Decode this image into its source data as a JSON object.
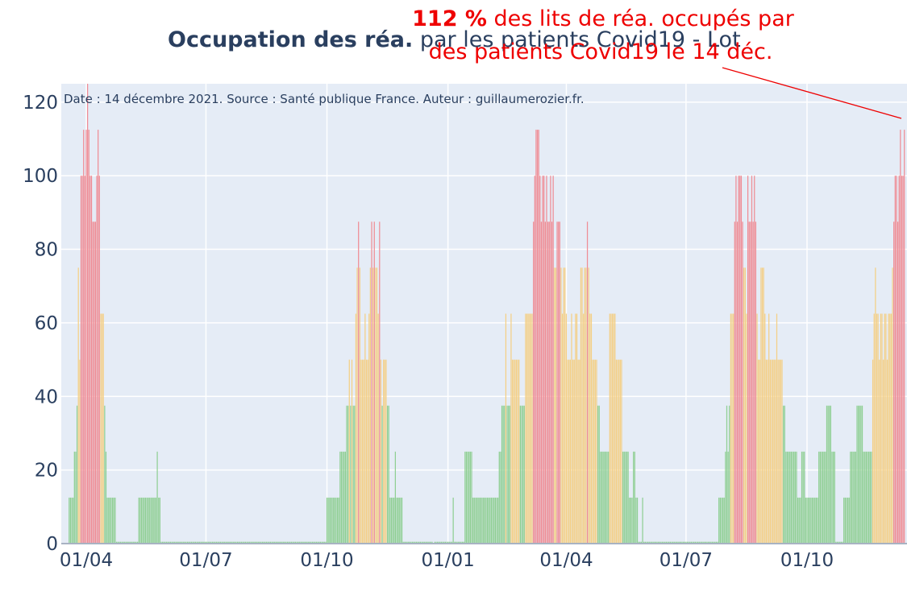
{
  "chart_data": {
    "type": "bar",
    "title_bold": "Occupation des réa.",
    "title_rest": " par les patients Covid19 - Lot",
    "note": "Date : 14 décembre 2021. Source : Santé publique France. Auteur : guillaumerozier.fr.",
    "annotation": {
      "value_text": "112 %",
      "line1_rest": " des lits de réa. occupés par",
      "line2": "des patients Covid19 le 14 déc."
    },
    "xlabel": "",
    "ylabel": "",
    "ylim": [
      0,
      125
    ],
    "grid": true,
    "x_range": [
      "2020-03-13",
      "2021-12-16"
    ],
    "y_ticks": [
      0,
      20,
      40,
      60,
      80,
      100,
      120
    ],
    "x_ticks": [
      {
        "date": "2020-04-01",
        "label": "01/04"
      },
      {
        "date": "2020-07-01",
        "label": "01/07"
      },
      {
        "date": "2020-10-01",
        "label": "01/10"
      },
      {
        "date": "2021-01-01",
        "label": "01/01"
      },
      {
        "date": "2021-04-01",
        "label": "01/04"
      },
      {
        "date": "2021-07-01",
        "label": "01/07"
      },
      {
        "date": "2021-10-01",
        "label": "01/10"
      }
    ],
    "thresholds": {
      "orange": 40,
      "red": 80
    },
    "colors": {
      "green": "#8fcf93",
      "orange": "#f4cf85",
      "red": "#ef8c95",
      "background": "#e5ecf6",
      "grid": "#ffffff",
      "text": "#2a3f5f",
      "annotation": "#ee0000"
    },
    "segments": [
      {
        "start": "2020-03-19",
        "end": "2020-03-22",
        "values": [
          12.5
        ]
      },
      {
        "start": "2020-03-23",
        "end": "2020-03-24",
        "values": [
          25
        ]
      },
      {
        "start": "2020-03-25",
        "end": "2020-03-25",
        "values": [
          37.5
        ]
      },
      {
        "start": "2020-03-26",
        "end": "2020-03-27",
        "values": [
          75,
          50
        ]
      },
      {
        "start": "2020-03-28",
        "end": "2020-04-11",
        "values": [
          100,
          100,
          112.5,
          100,
          112.5,
          125,
          112.5,
          100,
          100,
          87.5,
          87.5,
          87.5,
          100,
          112.5,
          100
        ]
      },
      {
        "start": "2020-04-12",
        "end": "2020-04-14",
        "values": [
          62.5
        ]
      },
      {
        "start": "2020-04-15",
        "end": "2020-04-15",
        "values": [
          37.5
        ]
      },
      {
        "start": "2020-04-16",
        "end": "2020-04-16",
        "values": [
          25
        ]
      },
      {
        "start": "2020-04-17",
        "end": "2020-04-23",
        "values": [
          12.5
        ]
      },
      {
        "start": "2020-04-24",
        "end": "2020-05-10",
        "values": [
          0.5
        ]
      },
      {
        "start": "2020-05-11",
        "end": "2020-05-24",
        "values": [
          12.5
        ]
      },
      {
        "start": "2020-05-25",
        "end": "2020-05-25",
        "values": [
          25
        ]
      },
      {
        "start": "2020-05-26",
        "end": "2020-05-27",
        "values": [
          12.5
        ]
      },
      {
        "start": "2020-05-28",
        "end": "2020-09-30",
        "values": [
          0.5
        ]
      },
      {
        "start": "2020-10-01",
        "end": "2020-10-10",
        "values": [
          12.5
        ]
      },
      {
        "start": "2020-10-11",
        "end": "2020-10-15",
        "values": [
          25
        ]
      },
      {
        "start": "2020-10-16",
        "end": "2020-10-22",
        "values": [
          37.5,
          37.5,
          50,
          37.5,
          50,
          37.5,
          37.5
        ]
      },
      {
        "start": "2020-10-23",
        "end": "2020-11-02",
        "values": [
          62.5,
          75,
          87.5,
          75,
          50,
          50,
          50,
          62.5,
          50,
          50,
          62.5
        ]
      },
      {
        "start": "2020-11-03",
        "end": "2020-11-10",
        "values": [
          75,
          87.5,
          75,
          87.5,
          75,
          75,
          62.5,
          87.5
        ]
      },
      {
        "start": "2020-11-11",
        "end": "2020-11-15",
        "values": [
          50,
          37.5,
          50,
          50,
          50
        ]
      },
      {
        "start": "2020-11-16",
        "end": "2020-11-17",
        "values": [
          37.5
        ]
      },
      {
        "start": "2020-11-18",
        "end": "2020-11-24",
        "values": [
          12.5,
          12.5,
          12.5,
          12.5,
          25,
          12.5,
          12.5
        ]
      },
      {
        "start": "2020-11-25",
        "end": "2020-11-27",
        "values": [
          12.5
        ]
      },
      {
        "start": "2020-11-28",
        "end": "2020-12-20",
        "values": [
          0.5
        ]
      },
      {
        "start": "2020-12-21",
        "end": "2020-12-21",
        "values": [
          0
        ]
      },
      {
        "start": "2020-12-22",
        "end": "2021-01-04",
        "values": [
          0.5
        ]
      },
      {
        "start": "2021-01-05",
        "end": "2021-01-05",
        "values": [
          12.5
        ]
      },
      {
        "start": "2021-01-06",
        "end": "2021-01-13",
        "values": [
          0.5
        ]
      },
      {
        "start": "2021-01-14",
        "end": "2021-01-19",
        "values": [
          25
        ]
      },
      {
        "start": "2021-01-20",
        "end": "2021-02-08",
        "values": [
          12.5
        ]
      },
      {
        "start": "2021-02-09",
        "end": "2021-02-10",
        "values": [
          25
        ]
      },
      {
        "start": "2021-02-11",
        "end": "2021-02-13",
        "values": [
          37.5
        ]
      },
      {
        "start": "2021-02-14",
        "end": "2021-02-14",
        "values": [
          62.5
        ]
      },
      {
        "start": "2021-02-15",
        "end": "2021-02-17",
        "values": [
          37.5
        ]
      },
      {
        "start": "2021-02-18",
        "end": "2021-02-28",
        "values": [
          62.5,
          50,
          50,
          50,
          50,
          50,
          50,
          37.5,
          37.5,
          37.5,
          37.5
        ]
      },
      {
        "start": "2021-03-01",
        "end": "2021-03-06",
        "values": [
          62.5
        ]
      },
      {
        "start": "2021-03-07",
        "end": "2021-03-19",
        "values": [
          87.5,
          100,
          112.5,
          112.5,
          112.5,
          100,
          87.5,
          100,
          100,
          87.5,
          100,
          87.5,
          87.5
        ]
      },
      {
        "start": "2021-03-20",
        "end": "2021-03-31",
        "values": [
          100,
          87.5,
          100,
          75,
          75,
          87.5,
          87.5,
          87.5,
          75,
          62.5,
          75,
          75
        ]
      },
      {
        "start": "2021-04-01",
        "end": "2021-04-12",
        "values": [
          62.5,
          50,
          50,
          50,
          62.5,
          50,
          50,
          62.5,
          62.5,
          50,
          50,
          75
        ]
      },
      {
        "start": "2021-04-13",
        "end": "2021-04-24",
        "values": [
          75,
          62.5,
          75,
          75,
          87.5,
          75,
          62.5,
          62.5,
          50,
          50,
          50,
          50
        ]
      },
      {
        "start": "2021-04-25",
        "end": "2021-05-03",
        "values": [
          37.5,
          37.5,
          25,
          25,
          25,
          25,
          25,
          25,
          25
        ]
      },
      {
        "start": "2021-05-04",
        "end": "2021-05-10",
        "values": [
          62.5,
          62.5,
          62.5,
          62.5,
          62.5,
          50,
          50
        ]
      },
      {
        "start": "2021-05-11",
        "end": "2021-05-14",
        "values": [
          50,
          50,
          50,
          25
        ]
      },
      {
        "start": "2021-05-15",
        "end": "2021-05-21",
        "values": [
          25,
          25,
          25,
          25,
          12.5,
          12.5,
          12.5
        ]
      },
      {
        "start": "2021-05-22",
        "end": "2021-05-25",
        "values": [
          25,
          25,
          12.5,
          12.5
        ]
      },
      {
        "start": "2021-05-26",
        "end": "2021-05-28",
        "values": [
          0.5
        ]
      },
      {
        "start": "2021-05-29",
        "end": "2021-05-29",
        "values": [
          12.5
        ]
      },
      {
        "start": "2021-05-30",
        "end": "2021-07-25",
        "values": [
          0.5
        ]
      },
      {
        "start": "2021-07-26",
        "end": "2021-07-30",
        "values": [
          12.5
        ]
      },
      {
        "start": "2021-07-31",
        "end": "2021-08-03",
        "values": [
          25,
          37.5,
          25,
          37.5
        ]
      },
      {
        "start": "2021-08-04",
        "end": "2021-08-06",
        "values": [
          62.5
        ]
      },
      {
        "start": "2021-08-07",
        "end": "2021-08-23",
        "values": [
          87.5,
          100,
          87.5,
          100,
          100,
          100,
          87.5,
          75,
          75,
          62.5,
          100,
          87.5,
          87.5,
          100,
          87.5,
          100,
          87.5
        ]
      },
      {
        "start": "2021-08-24",
        "end": "2021-09-12",
        "values": [
          62.5,
          50,
          50,
          75,
          75,
          75,
          62.5,
          50,
          50,
          62.5,
          50,
          50,
          50,
          50,
          50,
          62.5,
          50,
          50,
          50,
          50
        ]
      },
      {
        "start": "2021-09-13",
        "end": "2021-09-26",
        "values": [
          37.5,
          37.5,
          25,
          25,
          25,
          25,
          25,
          25,
          25,
          25,
          25,
          12.5,
          12.5,
          12.5
        ]
      },
      {
        "start": "2021-09-27",
        "end": "2021-10-12",
        "values": [
          25,
          25,
          25,
          12.5,
          12.5,
          12.5,
          12.5,
          12.5,
          12.5,
          12.5,
          12.5,
          12.5,
          12.5,
          25,
          25,
          25
        ]
      },
      {
        "start": "2021-10-13",
        "end": "2021-10-22",
        "values": [
          25,
          25,
          25,
          37.5,
          37.5,
          37.5,
          37.5,
          25,
          25,
          25
        ]
      },
      {
        "start": "2021-10-23",
        "end": "2021-10-28",
        "values": [
          0.5
        ]
      },
      {
        "start": "2021-10-29",
        "end": "2021-11-02",
        "values": [
          12.5
        ]
      },
      {
        "start": "2021-11-03",
        "end": "2021-11-07",
        "values": [
          25
        ]
      },
      {
        "start": "2021-11-08",
        "end": "2021-11-12",
        "values": [
          37.5
        ]
      },
      {
        "start": "2021-11-13",
        "end": "2021-11-16",
        "values": [
          25
        ]
      },
      {
        "start": "2021-11-17",
        "end": "2021-11-19",
        "values": [
          25
        ]
      },
      {
        "start": "2021-11-20",
        "end": "2021-12-03",
        "values": [
          50,
          62.5,
          75,
          62.5,
          62.5,
          50,
          62.5,
          62.5,
          50,
          62.5,
          62.5,
          50,
          62.5,
          62.5
        ]
      },
      {
        "start": "2021-12-04",
        "end": "2021-12-14",
        "values": [
          62.5,
          75,
          87.5,
          100,
          100,
          87.5,
          100,
          112.5,
          100,
          100,
          112.5
        ]
      }
    ]
  }
}
